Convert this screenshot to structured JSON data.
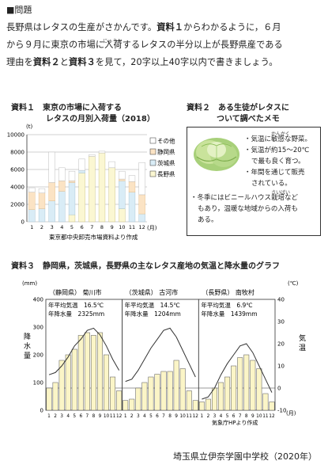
{
  "question": {
    "label": "■問題",
    "line1_a": "長野県はレタスの生産がさかんです。",
    "line1_b": "資料１",
    "line1_c": "からわかるように，６月",
    "line2_a": "から９月に東京の市場に",
    "line2_ruby_base": "入荷",
    "line2_ruby_text": "にゅうか",
    "line2_b": "するレタスの半分以上が長野県産である",
    "line3_a": "理由を",
    "line3_b": "資料２",
    "line3_c": "と",
    "line3_d": "資料３",
    "line3_e": "を見て，20字以上40字以内で書きましょう。"
  },
  "material1": {
    "label": "資料１",
    "title_line1": "東京の市場に入荷する",
    "title_line2": "レタスの月別入荷量（2018）",
    "unit": "(t)",
    "month_unit": "(月)",
    "source": "東京都中央卸売市場資料より作成"
  },
  "material2": {
    "label": "資料２",
    "title_line1": "ある生徒がレタスに",
    "title_line2": "ついて調べたメモ",
    "ruby_kankaku": "かんかく",
    "bullet1_a": "・気温に",
    "bullet1_b": "敏感",
    "bullet1_c": "な野菜。",
    "bullet2_a": "・気温が約15〜20℃",
    "bullet2_b": "で最も良く育つ。",
    "bullet3_a": "・年間を通じて販売",
    "bullet3_b": "されている。",
    "ruby_saibai": "さいばい",
    "bullet4_a": "・冬季にはビニールハウス",
    "bullet4_b": "栽培",
    "bullet4_c": "など",
    "bullet4_d": "もあり，温暖な地域からの入荷も",
    "bullet4_e": "ある。"
  },
  "material3": {
    "label": "資料３",
    "title": "静岡県，茨城県，長野県の主なレタス産地の気温と降水量のグラフ",
    "left_unit": "(mm)",
    "right_unit": "(℃)",
    "left_axis_label": "降水量",
    "right_axis_label": "気温",
    "month_unit": "(月)",
    "source": "気象庁HPより作成"
  },
  "footer": "埼玉県立伊奈学園中学校（2020年）",
  "colors": {
    "other": "#ffffff",
    "shizuoka": "#fbe3c4",
    "ibaraki": "#d9ecf6",
    "nagano": "#fbf7d2",
    "precip": "#fbf5c7",
    "line": "#333333"
  },
  "chart_data": [
    {
      "type": "bar",
      "stacked": true,
      "x": [
        1,
        2,
        3,
        4,
        5,
        6,
        7,
        8,
        9,
        10,
        11,
        12
      ],
      "x_tick_labels": [
        "1",
        "2",
        "3",
        "4",
        "5",
        "6",
        "7",
        "8",
        "9",
        "10",
        "11",
        "12"
      ],
      "ylim": [
        0,
        10000
      ],
      "y_ticks": [
        0,
        2000,
        4000,
        6000,
        8000,
        10000
      ],
      "y_tick_labels": [
        "0",
        "2000",
        "4000",
        "6000",
        "8000",
        "10000"
      ],
      "legend_placement": "right",
      "series": [
        {
          "name": "長野県",
          "key": "nagano",
          "values": [
            0,
            0,
            0,
            0,
            800,
            5600,
            7500,
            7900,
            6200,
            1500,
            0,
            0
          ]
        },
        {
          "name": "茨城県",
          "key": "ibaraki",
          "values": [
            1400,
            1500,
            2400,
            3500,
            3700,
            300,
            0,
            0,
            0,
            3200,
            3400,
            900
          ]
        },
        {
          "name": "静岡県",
          "key": "shizuoka",
          "values": [
            2000,
            1800,
            2100,
            1200,
            200,
            0,
            0,
            0,
            0,
            200,
            1200,
            2200
          ]
        },
        {
          "name": "その他",
          "key": "other",
          "values": [
            500,
            500,
            3500,
            1500,
            1100,
            1300,
            200,
            200,
            700,
            900,
            700,
            3700
          ]
        }
      ]
    },
    {
      "type": "bar+line",
      "name": "（静岡県） 菊川市",
      "temp_label": "年平均気温　16.5℃",
      "precip_label": "年降水量　2325mm",
      "x": [
        1,
        2,
        3,
        4,
        5,
        6,
        7,
        8,
        9,
        10,
        11,
        12
      ],
      "precip_mm": [
        80,
        100,
        180,
        200,
        220,
        270,
        280,
        270,
        280,
        200,
        120,
        70
      ],
      "temp_c": [
        6,
        7,
        10,
        14,
        19,
        22,
        26,
        27,
        24,
        19,
        13,
        8
      ],
      "ylim_left": [
        0,
        400
      ],
      "ylim_right": [
        -10,
        40
      ]
    },
    {
      "type": "bar+line",
      "name": "（茨城県） 古河市",
      "temp_label": "年平均気温　14.5℃",
      "precip_label": "年降水量　1204mm",
      "x": [
        1,
        2,
        3,
        4,
        5,
        6,
        7,
        8,
        9,
        10,
        11,
        12
      ],
      "precip_mm": [
        35,
        40,
        80,
        100,
        120,
        130,
        140,
        140,
        180,
        150,
        70,
        35
      ],
      "temp_c": [
        3,
        4,
        8,
        13,
        18,
        22,
        26,
        27,
        23,
        17,
        11,
        5
      ],
      "ylim_left": [
        0,
        400
      ],
      "ylim_right": [
        -10,
        40
      ]
    },
    {
      "type": "bar+line",
      "name": "（長野県） 南牧村",
      "temp_label": "年平均気温　6.9℃",
      "precip_label": "年降水量　1439mm",
      "x": [
        1,
        2,
        3,
        4,
        5,
        6,
        7,
        8,
        9,
        10,
        11,
        12
      ],
      "precip_mm": [
        30,
        40,
        80,
        100,
        120,
        160,
        190,
        200,
        180,
        150,
        60,
        30
      ],
      "temp_c": [
        -5,
        -4,
        0,
        6,
        11,
        15,
        19,
        20,
        16,
        10,
        4,
        -2
      ],
      "ylim_left": [
        0,
        400
      ],
      "ylim_right": [
        -10,
        40
      ]
    }
  ],
  "axis3": {
    "left_ticks": [
      "0",
      "100",
      "200",
      "300",
      "400"
    ],
    "right_ticks": [
      "-10",
      "0",
      "10",
      "20",
      "30",
      "40"
    ],
    "month_labels": [
      "1",
      "2",
      "3",
      "4",
      "5",
      "6",
      "7",
      "8",
      "9",
      "10",
      "11",
      "12"
    ]
  }
}
